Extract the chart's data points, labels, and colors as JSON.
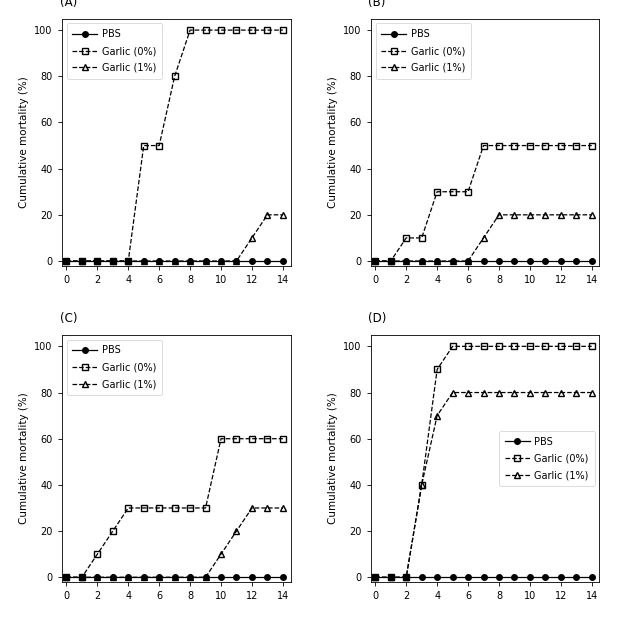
{
  "subplots": [
    {
      "label": "(A)",
      "pbs": [
        0,
        0,
        0,
        0,
        0,
        0,
        0,
        0,
        0,
        0,
        0,
        0,
        0,
        0,
        0
      ],
      "garlic0": [
        0,
        0,
        0,
        0,
        0,
        50,
        50,
        80,
        100,
        100,
        100,
        100,
        100,
        100,
        100
      ],
      "garlic1": [
        0,
        0,
        0,
        0,
        0,
        0,
        0,
        0,
        0,
        0,
        0,
        0,
        10,
        20,
        20
      ],
      "xticks": [
        0,
        2,
        4,
        6,
        8,
        10,
        12,
        14
      ],
      "yticks": [
        0,
        20,
        40,
        60,
        80,
        100
      ],
      "xlim": [
        -0.3,
        14.5
      ],
      "ylim": [
        -2,
        105
      ],
      "legend_loc": "upper left",
      "legend_bbox": null
    },
    {
      "label": "(B)",
      "pbs": [
        0,
        0,
        0,
        0,
        0,
        0,
        0,
        0,
        0,
        0,
        0,
        0,
        0,
        0,
        0
      ],
      "garlic0": [
        0,
        0,
        10,
        10,
        30,
        30,
        30,
        50,
        50,
        50,
        50,
        50,
        50,
        50,
        50
      ],
      "garlic1": [
        0,
        0,
        0,
        0,
        0,
        0,
        0,
        10,
        20,
        20,
        20,
        20,
        20,
        20,
        20
      ],
      "xticks": [
        0,
        2,
        4,
        6,
        8,
        10,
        12,
        14
      ],
      "yticks": [
        0,
        20,
        40,
        60,
        80,
        100
      ],
      "xlim": [
        -0.3,
        14.5
      ],
      "ylim": [
        -2,
        105
      ],
      "legend_loc": "upper left",
      "legend_bbox": null
    },
    {
      "label": "(C)",
      "pbs": [
        0,
        0,
        0,
        0,
        0,
        0,
        0,
        0,
        0,
        0,
        0,
        0,
        0,
        0,
        0
      ],
      "garlic0": [
        0,
        0,
        10,
        20,
        30,
        30,
        30,
        30,
        30,
        30,
        60,
        60,
        60,
        60,
        60
      ],
      "garlic1": [
        0,
        0,
        0,
        0,
        0,
        0,
        0,
        0,
        0,
        0,
        10,
        20,
        30,
        30,
        30
      ],
      "xticks": [
        0,
        2,
        4,
        6,
        8,
        10,
        12,
        14
      ],
      "yticks": [
        0,
        20,
        40,
        60,
        80,
        100
      ],
      "xlim": [
        -0.3,
        14.5
      ],
      "ylim": [
        -2,
        105
      ],
      "legend_loc": "upper left",
      "legend_bbox": null
    },
    {
      "label": "(D)",
      "pbs": [
        0,
        0,
        0,
        0,
        0,
        0,
        0,
        0,
        0,
        0,
        0,
        0,
        0,
        0,
        0
      ],
      "garlic0": [
        0,
        0,
        0,
        40,
        90,
        100,
        100,
        100,
        100,
        100,
        100,
        100,
        100,
        100,
        100
      ],
      "garlic1": [
        0,
        0,
        0,
        40,
        70,
        80,
        80,
        80,
        80,
        80,
        80,
        80,
        80,
        80,
        80
      ],
      "xticks": [
        0,
        2,
        4,
        6,
        8,
        10,
        12,
        14
      ],
      "yticks": [
        0,
        20,
        40,
        60,
        80,
        100
      ],
      "xlim": [
        -0.3,
        14.5
      ],
      "ylim": [
        -2,
        105
      ],
      "legend_loc": "center right",
      "legend_bbox": null
    }
  ],
  "x": [
    0,
    1,
    2,
    3,
    4,
    5,
    6,
    7,
    8,
    9,
    10,
    11,
    12,
    13,
    14
  ],
  "color": "#000000",
  "line_style_pbs": "-",
  "line_style_g0": "--",
  "line_style_g1": "--",
  "marker_pbs": "o",
  "marker_g0": "s",
  "marker_g1": "^",
  "markersize": 4,
  "linewidth": 0.9,
  "ylabel": "Cumulative mortality (%)",
  "legend_labels": [
    "PBS",
    "Garlic (0%)",
    "Garlic (1%)"
  ],
  "bg_color": "#ffffff",
  "label_fontsize": 7.5,
  "tick_fontsize": 7,
  "legend_fontsize": 7
}
